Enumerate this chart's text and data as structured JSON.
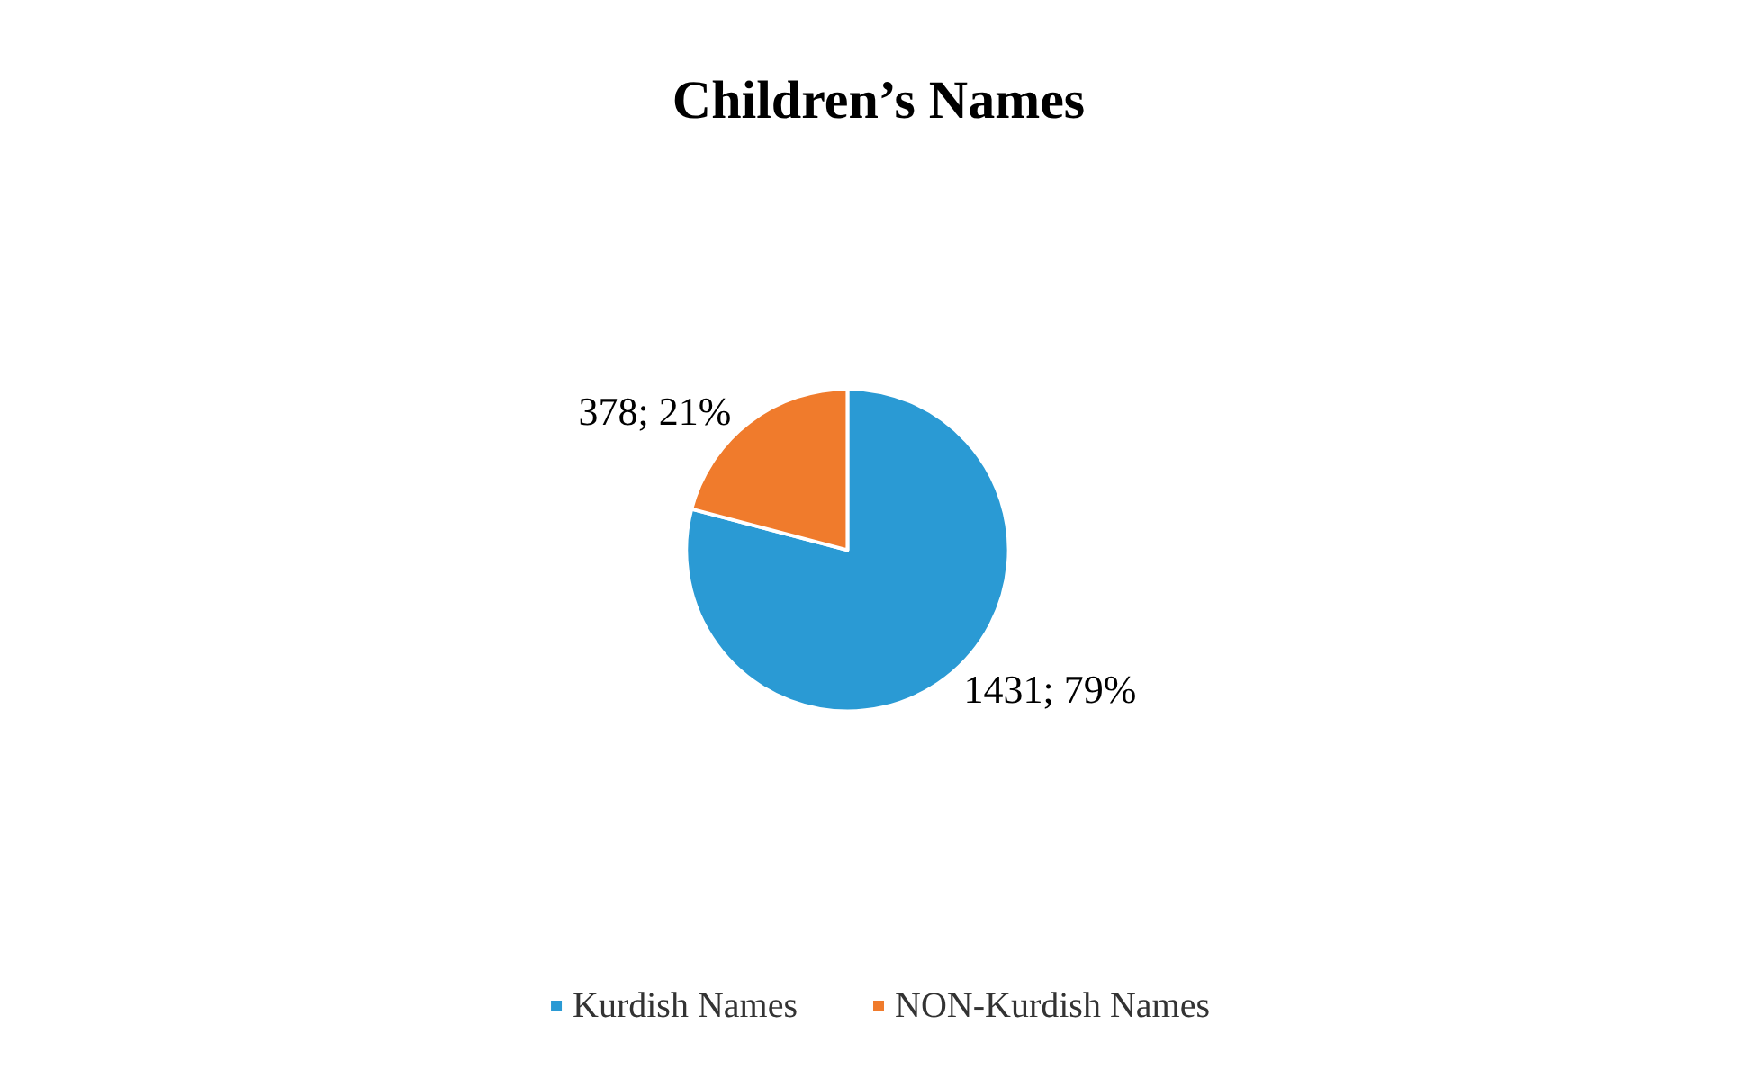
{
  "chart_data": {
    "type": "pie",
    "title": "Children’s Names",
    "categories": [
      "Kurdish Names",
      "NON-Kurdish Names"
    ],
    "values": [
      1431,
      378
    ],
    "colors": [
      "#2a9ad4",
      "#f07b2c"
    ],
    "value_labels": [
      "1431; 79%",
      "378; 21%"
    ],
    "legend": "bottom"
  }
}
